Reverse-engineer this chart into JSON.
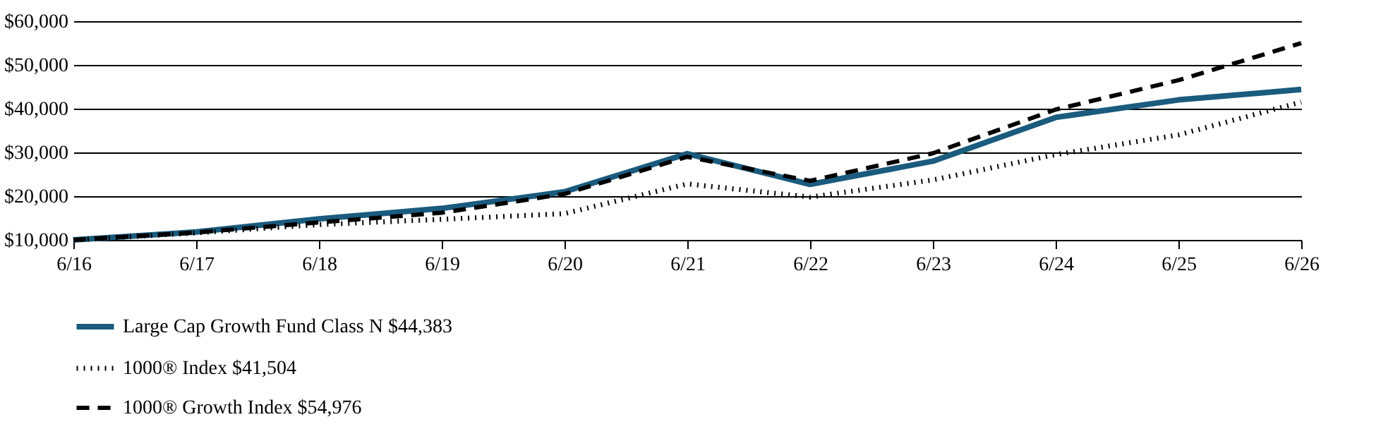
{
  "chart_data": {
    "type": "line",
    "categories": [
      "6/16",
      "6/17",
      "6/18",
      "6/19",
      "6/20",
      "6/21",
      "6/22",
      "6/23",
      "6/24",
      "6/25",
      "6/26"
    ],
    "series": [
      {
        "name": "Large Cap Growth Fund Class N $44,383",
        "color": "#1a5b7e",
        "line_style": "solid",
        "values": [
          10000,
          11800,
          14800,
          17200,
          21000,
          29700,
          22700,
          28000,
          38000,
          42000,
          44383
        ]
      },
      {
        "name": "1000® Index $41,504",
        "color": "#000000",
        "line_style": "dotted",
        "values": [
          10000,
          11600,
          13500,
          14700,
          16000,
          22800,
          19800,
          23700,
          29500,
          34000,
          41504
        ]
      },
      {
        "name": "1000® Growth Index $54,976",
        "color": "#000000",
        "line_style": "dashed",
        "values": [
          10000,
          11700,
          14000,
          16200,
          20500,
          29000,
          23500,
          29800,
          39800,
          46500,
          54976
        ]
      }
    ],
    "ylim": [
      10000,
      60000
    ],
    "yticks": [
      {
        "value": 10000,
        "label": "$10,000"
      },
      {
        "value": 20000,
        "label": "$20,000"
      },
      {
        "value": 30000,
        "label": "$30,000"
      },
      {
        "value": 40000,
        "label": "$40,000"
      },
      {
        "value": 50000,
        "label": "$50,000"
      },
      {
        "value": 60000,
        "label": "$60,000"
      }
    ],
    "grid": "y",
    "legend": "bottom left",
    "marker": "none"
  }
}
